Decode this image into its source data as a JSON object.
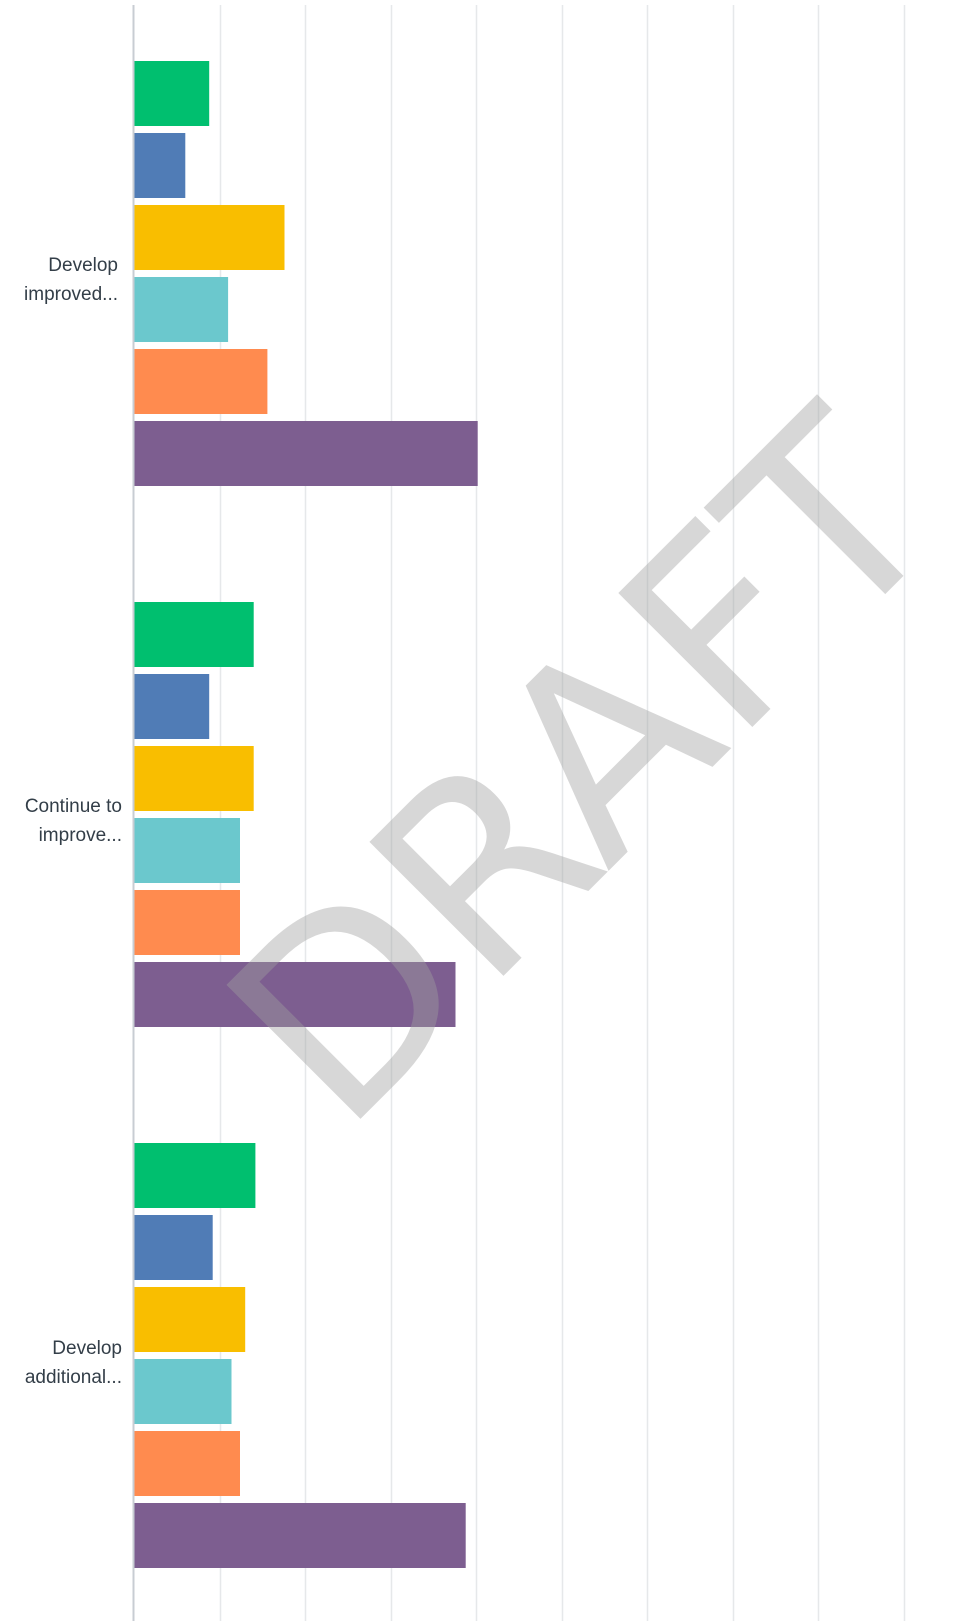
{
  "chart_data": {
    "type": "bar",
    "orientation": "horizontal",
    "categories": [
      "Develop improved...",
      "Continue to improve...",
      "Develop additional..."
    ],
    "series": [
      {
        "color": "#00bf6f",
        "values": [
          0.44,
          0.7,
          0.71
        ]
      },
      {
        "color": "#507cb6",
        "values": [
          0.3,
          0.44,
          0.46
        ]
      },
      {
        "color": "#f9be00",
        "values": [
          0.88,
          0.7,
          0.65
        ]
      },
      {
        "color": "#6bc8cd",
        "values": [
          0.55,
          0.62,
          0.57
        ]
      },
      {
        "color": "#ff8b4f",
        "values": [
          0.78,
          0.62,
          0.62
        ]
      },
      {
        "color": "#7d5e90",
        "values": [
          2.01,
          1.88,
          1.94
        ]
      }
    ],
    "xlim": [
      0,
      5
    ],
    "grid": true
  },
  "watermark": {
    "text": "DRAFT"
  }
}
